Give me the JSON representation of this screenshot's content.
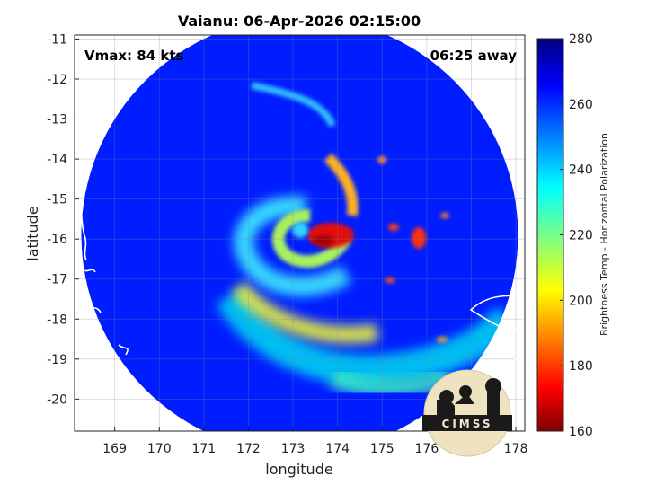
{
  "chart_data": {
    "type": "heatmap",
    "title": "Vaianu: 06-Apr-2026 02:15:00",
    "annotations": {
      "vmax": "Vmax: 84 kts",
      "time_away": "06:25 away"
    },
    "xlabel": "longitude",
    "ylabel": "latitude",
    "xlim": [
      168.1,
      178.2
    ],
    "ylim": [
      -20.8,
      -10.9
    ],
    "xticks": [
      169,
      170,
      171,
      172,
      173,
      174,
      175,
      176,
      177,
      178
    ],
    "yticks": [
      -11,
      -12,
      -13,
      -14,
      -15,
      -16,
      -17,
      -18,
      -19,
      -20
    ],
    "grid": true,
    "colorbar": {
      "label": "Brightness Temp - Horizontal Polarization",
      "min": 160,
      "max": 280,
      "ticks": [
        160,
        180,
        200,
        220,
        240,
        260,
        280
      ],
      "colormap": "jet"
    },
    "swath": {
      "center_lon": 173.15,
      "center_lat": -15.9,
      "radius_deg": 4.9,
      "background_temp": 262
    },
    "features": [
      {
        "name": "eyewall core",
        "lon": 173.9,
        "lat": -16.0,
        "temp": 170
      },
      {
        "name": "eye",
        "lon": 173.3,
        "lat": -15.9,
        "temp": 248
      },
      {
        "name": "inner spiral band",
        "lon": 173.4,
        "lat": -15.8,
        "temp": 220
      },
      {
        "name": "outer band south",
        "lon": 174.3,
        "lat": -18.3,
        "temp": 215
      },
      {
        "name": "band northeast",
        "lon": 174.2,
        "lat": -14.8,
        "temp": 195
      },
      {
        "name": "convective cells east",
        "lon": 176.0,
        "lat": -16.3,
        "temp": 180
      },
      {
        "name": "band southwest",
        "lon": 172.3,
        "lat": -17.8,
        "temp": 205
      }
    ],
    "logo": "CIMSS"
  }
}
